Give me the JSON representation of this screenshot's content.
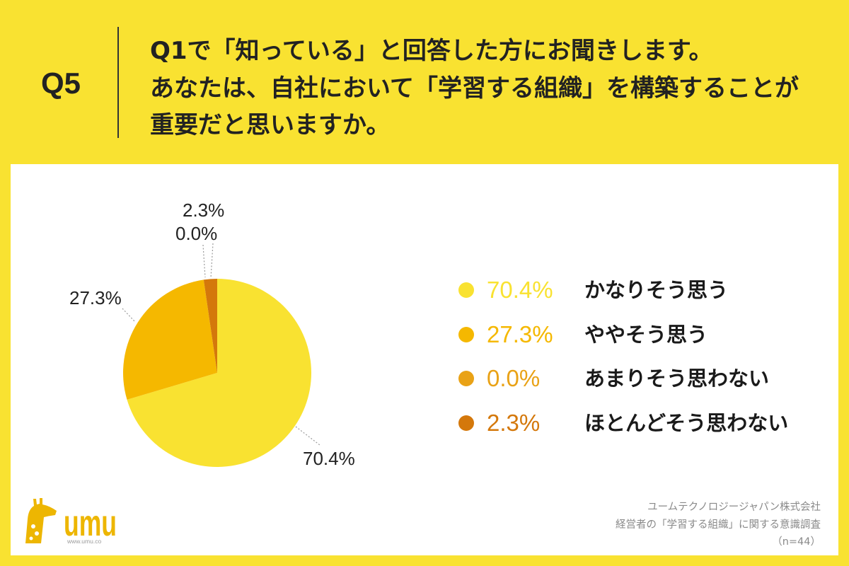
{
  "question": {
    "number": "Q5",
    "lines": [
      "Q1で「知っている」と回答した方にお聞きします。",
      "あなたは、自社において「学習する組織」を構築することが",
      "重要だと思いますか。"
    ]
  },
  "chart_data": {
    "type": "pie",
    "categories": [
      "かなりそう思う",
      "ややそう思う",
      "あまりそう思わない",
      "ほとんどそう思わない"
    ],
    "values": [
      70.4,
      27.3,
      0.0,
      2.3
    ],
    "value_labels": [
      "70.4%",
      "27.3%",
      "0.0%",
      "2.3%"
    ],
    "colors": [
      "#F9E231",
      "#F5B800",
      "#E9A216",
      "#D4780B"
    ],
    "legend_position": "right"
  },
  "logo": {
    "name": "umu",
    "site": "www.umu.co",
    "color": "#EDB602"
  },
  "source": {
    "company": "ユームテクノロジージャパン株式会社",
    "survey": "経営者の「学習する組織」に関する意識調査",
    "sample": "（n=44）"
  },
  "theme": {
    "background": "#F9E231",
    "panel": "#FFFFFF",
    "text": "#222222",
    "caption": "#8A8A8A"
  }
}
